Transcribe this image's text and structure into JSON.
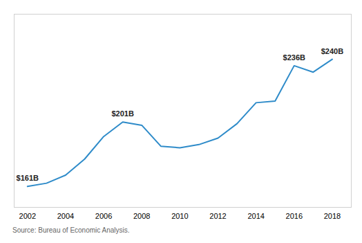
{
  "chart_data": {
    "type": "line",
    "x": [
      2002,
      2003,
      2004,
      2005,
      2006,
      2007,
      2008,
      2009,
      2010,
      2011,
      2012,
      2013,
      2014,
      2015,
      2016,
      2017,
      2018
    ],
    "values": [
      161,
      163,
      168,
      178,
      192,
      201,
      199,
      186,
      185,
      187,
      191,
      200,
      213,
      214,
      236,
      232,
      240
    ],
    "color": "#2e8bc9",
    "xlim": [
      2001.3,
      2019.0
    ],
    "xticks": [
      2002,
      2004,
      2006,
      2008,
      2010,
      2012,
      2014,
      2016,
      2018
    ],
    "ylim": [
      148,
      268
    ],
    "grid": false,
    "tick_labels": "x",
    "annotations": [
      {
        "x": 2002,
        "label": "$161B"
      },
      {
        "x": 2007,
        "label": "$201B"
      },
      {
        "x": 2016,
        "label": "$236B"
      },
      {
        "x": 2018,
        "label": "$240B"
      }
    ],
    "caption": "Source: Bureau of Economic Analysis."
  }
}
